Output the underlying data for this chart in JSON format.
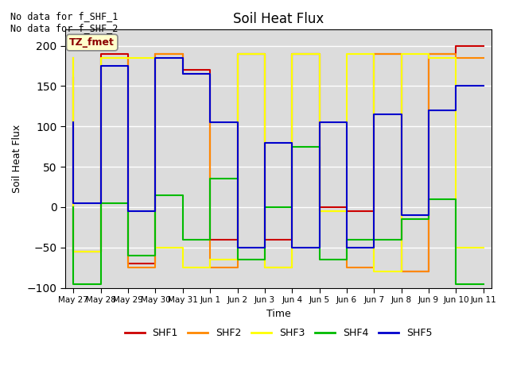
{
  "title": "Soil Heat Flux",
  "ylabel": "Soil Heat Flux",
  "xlabel": "Time",
  "ylim": [
    -100,
    220
  ],
  "yticks": [
    -100,
    -50,
    0,
    50,
    100,
    150,
    200
  ],
  "annotation_text": "No data for f_SHF_1\nNo data for f_SHF_2",
  "legend_label": "TZ_fmet",
  "legend_entries": [
    "SHF1",
    "SHF2",
    "SHF3",
    "SHF4",
    "SHF5"
  ],
  "legend_colors": [
    "#cc0000",
    "#ff8800",
    "#ffff00",
    "#00bb00",
    "#0000cc"
  ],
  "background_color": "#dcdcdc",
  "x_tick_labels": [
    "May 27",
    "May 28",
    "May 29",
    "May 30",
    "May 31",
    "Jun 1",
    "Jun 2",
    "Jun 3",
    "Jun 4",
    "Jun 5",
    "Jun 6",
    "Jun 7",
    "Jun 8",
    "Jun 9",
    "Jun 10",
    "Jun 11"
  ],
  "series": {
    "SHF1": {
      "color": "#cc0000",
      "x": [
        0,
        0,
        1,
        1,
        2,
        2,
        3,
        3,
        4,
        4,
        5,
        5,
        6,
        6,
        7,
        7,
        8,
        8,
        9,
        9,
        10,
        10,
        11,
        11,
        12,
        12,
        13,
        13,
        14,
        14,
        15
      ],
      "y": [
        160,
        -55,
        -55,
        190,
        190,
        -70,
        -70,
        190,
        190,
        170,
        170,
        -40,
        -40,
        190,
        190,
        -40,
        -40,
        190,
        190,
        0,
        0,
        -5,
        -5,
        190,
        190,
        -80,
        -80,
        190,
        190,
        200,
        200
      ]
    },
    "SHF2": {
      "color": "#ff8800",
      "x": [
        0,
        0,
        1,
        1,
        2,
        2,
        3,
        3,
        4,
        4,
        5,
        5,
        6,
        6,
        7,
        7,
        8,
        8,
        9,
        9,
        10,
        10,
        11,
        11,
        12,
        12,
        13,
        13,
        14,
        14,
        15
      ],
      "y": [
        185,
        -55,
        -55,
        185,
        185,
        -75,
        -75,
        190,
        190,
        165,
        165,
        -75,
        -75,
        190,
        190,
        -75,
        -75,
        190,
        190,
        -5,
        -5,
        -75,
        -75,
        190,
        190,
        -80,
        -80,
        190,
        190,
        185,
        185
      ]
    },
    "SHF3": {
      "color": "#ffff00",
      "x": [
        0,
        0,
        1,
        1,
        2,
        2,
        3,
        3,
        4,
        4,
        5,
        5,
        6,
        6,
        7,
        7,
        8,
        8,
        9,
        9,
        10,
        10,
        11,
        11,
        12,
        12,
        13,
        13,
        14,
        14,
        15
      ],
      "y": [
        185,
        -55,
        -55,
        185,
        185,
        185,
        185,
        -50,
        -50,
        -75,
        -75,
        -65,
        -65,
        190,
        190,
        -75,
        -75,
        190,
        190,
        -5,
        -5,
        190,
        190,
        -80,
        -80,
        190,
        190,
        185,
        185,
        -50,
        -50
      ]
    },
    "SHF4": {
      "color": "#00bb00",
      "x": [
        0,
        0,
        1,
        1,
        2,
        2,
        3,
        3,
        4,
        4,
        5,
        5,
        6,
        6,
        7,
        7,
        8,
        8,
        9,
        9,
        10,
        10,
        11,
        11,
        12,
        12,
        13,
        13,
        14,
        14,
        15
      ],
      "y": [
        0,
        -95,
        -95,
        5,
        5,
        -60,
        -60,
        15,
        15,
        -40,
        -40,
        35,
        35,
        -65,
        -65,
        0,
        0,
        75,
        75,
        -65,
        -65,
        -40,
        -40,
        -40,
        -40,
        -15,
        -15,
        10,
        10,
        -95,
        -95
      ]
    },
    "SHF5": {
      "color": "#0000cc",
      "x": [
        0,
        0,
        1,
        1,
        2,
        2,
        3,
        3,
        4,
        4,
        5,
        5,
        6,
        6,
        7,
        7,
        8,
        8,
        9,
        9,
        10,
        10,
        11,
        11,
        12,
        12,
        13,
        13,
        14,
        14,
        15
      ],
      "y": [
        105,
        5,
        5,
        175,
        175,
        -5,
        -5,
        185,
        185,
        165,
        165,
        105,
        105,
        -50,
        -50,
        80,
        80,
        -50,
        -50,
        105,
        105,
        -50,
        -50,
        115,
        115,
        -10,
        -10,
        120,
        120,
        150,
        150
      ]
    }
  }
}
